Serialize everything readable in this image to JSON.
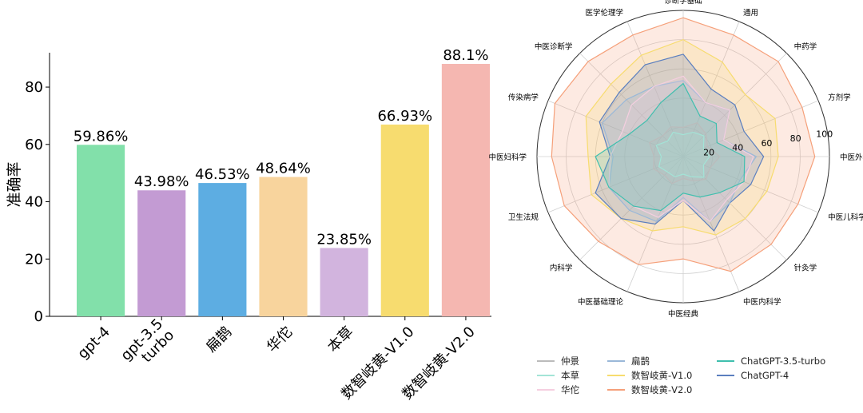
{
  "chart_data": [
    {
      "type": "bar",
      "title": "",
      "xlabel": "",
      "ylabel": "准确率",
      "ylim": [
        0,
        92
      ],
      "yticks": [
        0,
        20,
        40,
        60,
        80
      ],
      "categories": [
        "gpt-4",
        "gpt-3.5\nturbo",
        "扁鹊",
        "华佗",
        "本草",
        "数智岐黄-V1.0",
        "数智岐黄-V2.0"
      ],
      "values": [
        59.86,
        43.98,
        46.53,
        48.64,
        23.85,
        66.93,
        88.1
      ],
      "data_labels": [
        "59.86%",
        "43.98%",
        "46.53%",
        "48.64%",
        "23.85%",
        "66.93%",
        "88.1%"
      ],
      "colors": [
        "#82e0aa",
        "#c39bd3",
        "#5dade2",
        "#f8d49d",
        "#d2b4de",
        "#f7dc6f",
        "#f5b7b1"
      ],
      "grid": false
    },
    {
      "type": "radar",
      "title": "",
      "rlim": [
        0,
        100
      ],
      "rticks": [
        20,
        40,
        60,
        80,
        100
      ],
      "axes": [
        "诊断学基础",
        "通用",
        "中药学",
        "方剂学",
        "中医外科学",
        "中医儿科学",
        "针灸学",
        "中医内科学",
        "中医经典",
        "中医基础理论",
        "内科学",
        "卫生法规",
        "中医妇科学",
        "传染病学",
        "中医诊断学",
        "医学伦理学"
      ],
      "legend_position": "bottom",
      "series": [
        {
          "name": "仲景",
          "color": "#bbbbbb",
          "values": [
            20,
            25,
            22,
            18,
            25,
            20,
            22,
            18,
            15,
            20,
            18,
            22,
            20,
            25,
            20,
            22
          ]
        },
        {
          "name": "本草",
          "color": "#a3e4d7",
          "values": [
            15,
            18,
            20,
            15,
            18,
            15,
            20,
            15,
            12,
            15,
            15,
            18,
            15,
            20,
            15,
            18
          ]
        },
        {
          "name": "华佗",
          "color": "#f5cfe0",
          "values": [
            55,
            40,
            45,
            30,
            48,
            45,
            42,
            48,
            30,
            45,
            48,
            55,
            50,
            45,
            50,
            52
          ]
        },
        {
          "name": "扁鹊",
          "color": "#9ab8d8",
          "values": [
            52,
            40,
            45,
            30,
            50,
            42,
            45,
            48,
            28,
            48,
            52,
            55,
            48,
            60,
            55,
            52
          ]
        },
        {
          "name": "数智岐黄-V1.0",
          "color": "#f7dc6f",
          "values": [
            80,
            70,
            60,
            68,
            65,
            62,
            60,
            58,
            48,
            55,
            60,
            68,
            65,
            72,
            70,
            75
          ]
        },
        {
          "name": "数智岐黄-V2.0",
          "color": "#f5a07a",
          "values": [
            95,
            90,
            92,
            88,
            90,
            85,
            85,
            85,
            70,
            80,
            82,
            88,
            90,
            95,
            92,
            90
          ]
        },
        {
          "name": "ChatGPT-3.5-turbo",
          "color": "#3fbfae",
          "values": [
            50,
            30,
            32,
            25,
            42,
            45,
            35,
            30,
            25,
            40,
            48,
            55,
            60,
            40,
            35,
            40
          ]
        },
        {
          "name": "ChatGPT-4",
          "color": "#5b7fbf",
          "values": [
            70,
            50,
            50,
            45,
            55,
            50,
            45,
            55,
            30,
            50,
            60,
            65,
            50,
            62,
            62,
            68
          ]
        }
      ]
    }
  ]
}
